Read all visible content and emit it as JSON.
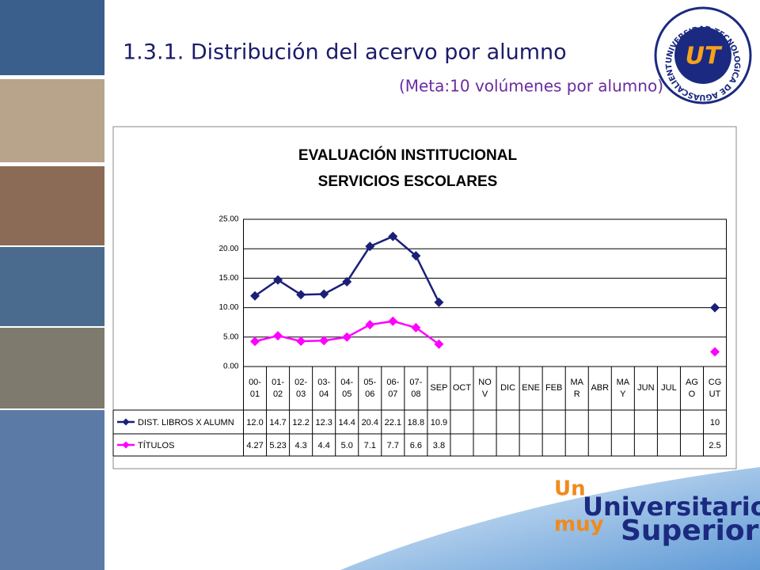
{
  "header": {
    "title": "1.3.1. Distribución del acervo por alumno",
    "subtitle": "(Meta:10 volúmenes por alumno)"
  },
  "logo": {
    "ring_text": "UNIVERSIDAD TECNOLOGICA DE AGUASCALIENTES",
    "mark": "UT"
  },
  "slogan": {
    "line1": "Un",
    "line2": "Universitario",
    "line3": "muy",
    "line4": "Superior"
  },
  "chart_data": {
    "type": "line",
    "title": "EVALUACIÓN INSTITUCIONAL",
    "subtitle": "SERVICIOS ESCOLARES",
    "categories": [
      "00-\n01",
      "01-\n02",
      "02-\n03",
      "03-\n04",
      "04-\n05",
      "05-\n06",
      "06-\n07",
      "07-\n08",
      "SEP",
      "OCT",
      "NO\nV",
      "DIC",
      "ENE",
      "FEB",
      "MA\nR",
      "ABR",
      "MA\nY",
      "JUN",
      "JUL",
      "AG\nO",
      "CG\nUT"
    ],
    "ylim": [
      0,
      25
    ],
    "yticks": [
      {
        "value": 0,
        "label": "0.00"
      },
      {
        "value": 5,
        "label": "5.00"
      },
      {
        "value": 10,
        "label": "10.00"
      },
      {
        "value": 15,
        "label": "15.00"
      },
      {
        "value": 20,
        "label": "20.00"
      },
      {
        "value": 25,
        "label": "25.00"
      }
    ],
    "grid": true,
    "series": [
      {
        "name": "DIST. LIBROS X ALUMN",
        "color": "#1a1f78",
        "values": [
          12.0,
          14.7,
          12.2,
          12.3,
          14.4,
          20.4,
          22.1,
          18.8,
          10.9,
          null,
          null,
          null,
          null,
          null,
          null,
          null,
          null,
          null,
          null,
          null,
          10
        ],
        "value_labels": [
          "12.0",
          "14.7",
          "12.2",
          "12.3",
          "14.4",
          "20.4",
          "22.1",
          "18.8",
          "10.9",
          null,
          null,
          null,
          null,
          null,
          null,
          null,
          null,
          null,
          null,
          null,
          "10"
        ]
      },
      {
        "name": "TÍTULOS",
        "color": "#ff00ff",
        "values": [
          4.27,
          5.23,
          4.3,
          4.4,
          5.0,
          7.1,
          7.7,
          6.6,
          3.8,
          null,
          null,
          null,
          null,
          null,
          null,
          null,
          null,
          null,
          null,
          null,
          2.5
        ],
        "value_labels": [
          "4.27",
          "5.23",
          "4.3",
          "4.4",
          "5.0",
          "7.1",
          "7.7",
          "6.6",
          "3.8",
          null,
          null,
          null,
          null,
          null,
          null,
          null,
          null,
          null,
          null,
          null,
          "2.5"
        ]
      }
    ]
  }
}
